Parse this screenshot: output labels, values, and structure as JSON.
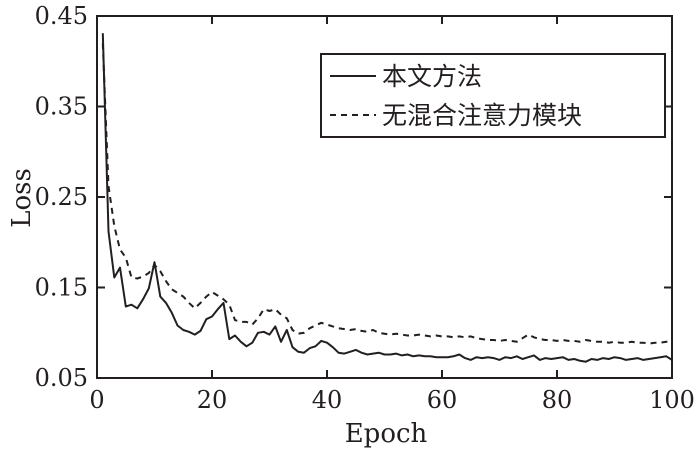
{
  "chart_data": {
    "type": "line",
    "title": "",
    "xlabel": "Epoch",
    "ylabel": "Loss",
    "xlim": [
      0,
      100
    ],
    "ylim": [
      0.05,
      0.45
    ],
    "x_ticks": [
      0,
      20,
      40,
      60,
      80,
      100
    ],
    "y_ticks": [
      0.05,
      0.15,
      0.25,
      0.35,
      0.45
    ],
    "y_tick_labels": [
      "0.05",
      "0.15",
      "0.25",
      "0.35",
      "0.45"
    ],
    "grid": false,
    "legend_position": "top-right",
    "x_start": 1,
    "series": [
      {
        "name": "本文方法",
        "style": "solid",
        "values": [
          0.431,
          0.212,
          0.161,
          0.172,
          0.129,
          0.131,
          0.127,
          0.137,
          0.149,
          0.178,
          0.14,
          0.133,
          0.122,
          0.108,
          0.103,
          0.101,
          0.098,
          0.102,
          0.115,
          0.118,
          0.126,
          0.133,
          0.093,
          0.097,
          0.09,
          0.085,
          0.089,
          0.1,
          0.101,
          0.098,
          0.107,
          0.09,
          0.103,
          0.084,
          0.079,
          0.078,
          0.083,
          0.085,
          0.091,
          0.089,
          0.084,
          0.078,
          0.077,
          0.079,
          0.081,
          0.078,
          0.076,
          0.077,
          0.078,
          0.076,
          0.076,
          0.077,
          0.075,
          0.076,
          0.074,
          0.075,
          0.074,
          0.074,
          0.073,
          0.073,
          0.073,
          0.074,
          0.076,
          0.072,
          0.07,
          0.073,
          0.072,
          0.073,
          0.072,
          0.07,
          0.073,
          0.072,
          0.074,
          0.071,
          0.073,
          0.075,
          0.07,
          0.072,
          0.071,
          0.072,
          0.073,
          0.07,
          0.071,
          0.069,
          0.068,
          0.071,
          0.07,
          0.072,
          0.071,
          0.073,
          0.072,
          0.07,
          0.071,
          0.072,
          0.07,
          0.071,
          0.072,
          0.073,
          0.074,
          0.07
        ]
      },
      {
        "name": "无混合注意力模块",
        "style": "dashed",
        "values": [
          0.42,
          0.262,
          0.218,
          0.192,
          0.183,
          0.161,
          0.16,
          0.162,
          0.166,
          0.175,
          0.168,
          0.157,
          0.148,
          0.144,
          0.14,
          0.133,
          0.127,
          0.133,
          0.14,
          0.145,
          0.141,
          0.137,
          0.131,
          0.114,
          0.112,
          0.112,
          0.109,
          0.116,
          0.126,
          0.124,
          0.126,
          0.12,
          0.116,
          0.103,
          0.099,
          0.1,
          0.105,
          0.108,
          0.111,
          0.109,
          0.107,
          0.105,
          0.104,
          0.103,
          0.104,
          0.102,
          0.101,
          0.103,
          0.1,
          0.099,
          0.098,
          0.099,
          0.098,
          0.097,
          0.097,
          0.098,
          0.097,
          0.096,
          0.097,
          0.096,
          0.096,
          0.095,
          0.096,
          0.095,
          0.096,
          0.094,
          0.093,
          0.092,
          0.092,
          0.091,
          0.092,
          0.091,
          0.09,
          0.094,
          0.098,
          0.095,
          0.093,
          0.092,
          0.092,
          0.091,
          0.092,
          0.091,
          0.091,
          0.09,
          0.092,
          0.091,
          0.09,
          0.09,
          0.089,
          0.09,
          0.089,
          0.089,
          0.09,
          0.089,
          0.089,
          0.088,
          0.089,
          0.089,
          0.09,
          0.092
        ]
      }
    ]
  }
}
